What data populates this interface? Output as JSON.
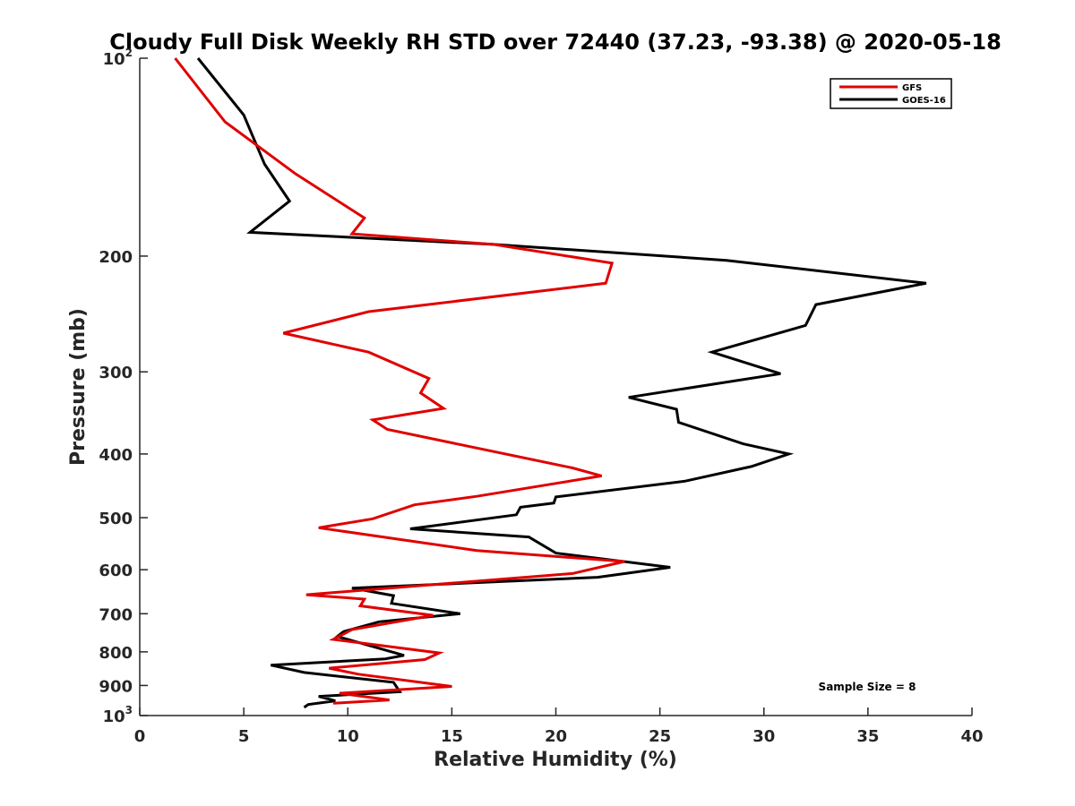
{
  "chart_data": {
    "type": "line",
    "title": "Cloudy Full Disk Weekly RH STD over 72440 (37.23, -93.38) @ 2020-05-18",
    "xlabel": "Relative Humidity (%)",
    "ylabel": "Pressure (mb)",
    "xlim": [
      0,
      40
    ],
    "ylim": [
      100,
      1000
    ],
    "y_scale": "log",
    "y_reversed": true,
    "grid": false,
    "legend_position": "top-right",
    "x_ticks": [
      "0",
      "5",
      "10",
      "15",
      "20",
      "25",
      "30",
      "35",
      "40"
    ],
    "y_ticks": [
      {
        "value": 100,
        "base": "10",
        "exp": "2"
      },
      {
        "value": 200,
        "label": "200"
      },
      {
        "value": 300,
        "label": "300"
      },
      {
        "value": 400,
        "label": "400"
      },
      {
        "value": 500,
        "label": "500"
      },
      {
        "value": 600,
        "label": "600"
      },
      {
        "value": 700,
        "label": "700"
      },
      {
        "value": 800,
        "label": "800"
      },
      {
        "value": 900,
        "label": "900"
      },
      {
        "value": 1000,
        "base": "10",
        "exp": "3"
      }
    ],
    "annotation": "Sample Size = 8",
    "series": [
      {
        "name": "GFS",
        "color": "#e00000",
        "points": [
          [
            1.7,
            100
          ],
          [
            4.1,
            125
          ],
          [
            7.5,
            150
          ],
          [
            10.8,
            175
          ],
          [
            10.2,
            185
          ],
          [
            17.0,
            192
          ],
          [
            22.7,
            205
          ],
          [
            22.4,
            220
          ],
          [
            11.0,
            243
          ],
          [
            6.9,
            262
          ],
          [
            11.0,
            280
          ],
          [
            13.9,
            307
          ],
          [
            13.5,
            323
          ],
          [
            14.6,
            341
          ],
          [
            11.2,
            355
          ],
          [
            11.9,
            367
          ],
          [
            20.8,
            420
          ],
          [
            22.2,
            432
          ],
          [
            16.2,
            464
          ],
          [
            13.2,
            478
          ],
          [
            11.2,
            502
          ],
          [
            8.6,
            518
          ],
          [
            16.2,
            561
          ],
          [
            23.3,
            583
          ],
          [
            20.8,
            608
          ],
          [
            8.0,
            655
          ],
          [
            10.8,
            665
          ],
          [
            10.6,
            681
          ],
          [
            14.1,
            704
          ],
          [
            10.2,
            740
          ],
          [
            9.3,
            766
          ],
          [
            14.4,
            803
          ],
          [
            13.7,
            822
          ],
          [
            9.1,
            847
          ],
          [
            10.5,
            865
          ],
          [
            15.0,
            903
          ],
          [
            9.6,
            925
          ],
          [
            12.0,
            947
          ],
          [
            9.3,
            958
          ]
        ]
      },
      {
        "name": "GOES-16",
        "color": "#000000",
        "points": [
          [
            2.8,
            100
          ],
          [
            5.0,
            122
          ],
          [
            6.0,
            145
          ],
          [
            7.2,
            165
          ],
          [
            5.3,
            184
          ],
          [
            17.0,
            192
          ],
          [
            28.2,
            203
          ],
          [
            37.8,
            220
          ],
          [
            32.5,
            237
          ],
          [
            32.0,
            255
          ],
          [
            27.5,
            280
          ],
          [
            30.8,
            302
          ],
          [
            23.5,
            328
          ],
          [
            25.8,
            342
          ],
          [
            25.9,
            358
          ],
          [
            29.0,
            386
          ],
          [
            31.2,
            400
          ],
          [
            29.4,
            418
          ],
          [
            26.2,
            440
          ],
          [
            20.0,
            465
          ],
          [
            19.9,
            475
          ],
          [
            18.3,
            482
          ],
          [
            18.1,
            495
          ],
          [
            13.0,
            520
          ],
          [
            18.7,
            535
          ],
          [
            20.0,
            566
          ],
          [
            25.5,
            595
          ],
          [
            22.0,
            616
          ],
          [
            10.2,
            640
          ],
          [
            12.2,
            657
          ],
          [
            12.1,
            675
          ],
          [
            15.4,
            700
          ],
          [
            11.5,
            720
          ],
          [
            9.8,
            745
          ],
          [
            9.5,
            758
          ],
          [
            12.7,
            810
          ],
          [
            11.8,
            820
          ],
          [
            6.3,
            838
          ],
          [
            7.9,
            860
          ],
          [
            12.2,
            890
          ],
          [
            12.5,
            920
          ],
          [
            8.6,
            935
          ],
          [
            9.4,
            950
          ],
          [
            8.1,
            962
          ],
          [
            7.9,
            972
          ]
        ]
      }
    ]
  }
}
